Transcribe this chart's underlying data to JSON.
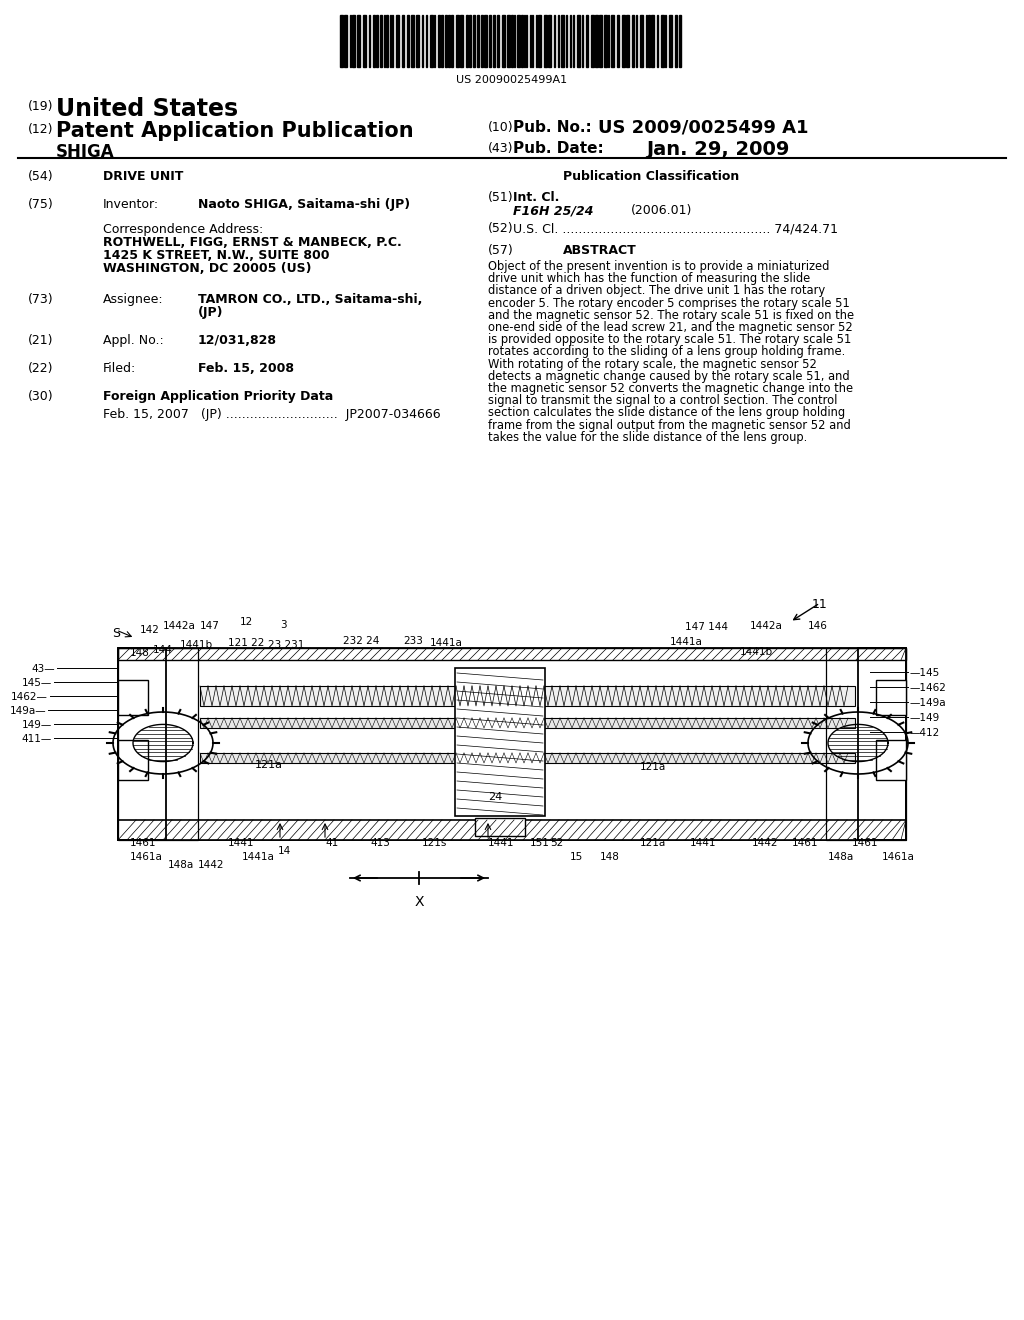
{
  "background_color": "#ffffff",
  "barcode_text": "US 20090025499A1",
  "header": {
    "tag19": "(19)",
    "united_states": "United States",
    "tag12": "(12)",
    "patent_app_pub": "Patent Application Publication",
    "tag10": "(10)",
    "pub_no_label": "Pub. No.:",
    "pub_no": "US 2009/0025499 A1",
    "inventor_name": "SHIGA",
    "tag43": "(43)",
    "pub_date_label": "Pub. Date:",
    "pub_date": "Jan. 29, 2009"
  },
  "left_col": {
    "tag54": "(54)",
    "title": "DRIVE UNIT",
    "tag75": "(75)",
    "inventor_label": "Inventor:",
    "inventor_value": "Naoto SHIGA, Saitama-shi (JP)",
    "corr_address_label": "Correspondence Address:",
    "corr_address_lines": [
      "ROTHWELL, FIGG, ERNST & MANBECK, P.C.",
      "1425 K STREET, N.W., SUITE 800",
      "WASHINGTON, DC 20005 (US)"
    ],
    "tag73": "(73)",
    "assignee_label": "Assignee:",
    "assignee_value1": "TAMRON CO., LTD., Saitama-shi,",
    "assignee_value2": "(JP)",
    "tag21": "(21)",
    "appl_no_label": "Appl. No.:",
    "appl_no_value": "12/031,828",
    "tag22": "(22)",
    "filed_label": "Filed:",
    "filed_value": "Feb. 15, 2008",
    "tag30": "(30)",
    "foreign_priority_label": "Foreign Application Priority Data",
    "foreign_priority_line": "Feb. 15, 2007   (JP) ............................  JP2007-034666"
  },
  "right_col": {
    "pub_class_title": "Publication Classification",
    "tag51": "(51)",
    "int_cl_label": "Int. Cl.",
    "int_cl_value": "F16H 25/24",
    "int_cl_date": "(2006.01)",
    "tag52": "(52)",
    "us_cl_line": "U.S. Cl. .................................................... 74/424.71",
    "tag57": "(57)",
    "abstract_title": "ABSTRACT",
    "abstract_lines": [
      "Object of the present invention is to provide a miniaturized",
      "drive unit which has the function of measuring the slide",
      "distance of a driven object. The drive unit 1 has the rotary",
      "encoder 5. The rotary encoder 5 comprises the rotary scale 51",
      "and the magnetic sensor 52. The rotary scale 51 is fixed on the",
      "one-end side of the lead screw 21, and the magnetic sensor 52",
      "is provided opposite to the rotary scale 51. The rotary scale 51",
      "rotates according to the sliding of a lens group holding frame.",
      "With rotating of the rotary scale, the magnetic sensor 52",
      "detects a magnetic change caused by the rotary scale 51, and",
      "the magnetic sensor 52 converts the magnetic change into the",
      "signal to transmit the signal to a control section. The control",
      "section calculates the slide distance of the lens group holding",
      "frame from the signal output from the magnetic sensor 52 and",
      "takes the value for the slide distance of the lens group."
    ]
  },
  "diagram_x_label": "X"
}
